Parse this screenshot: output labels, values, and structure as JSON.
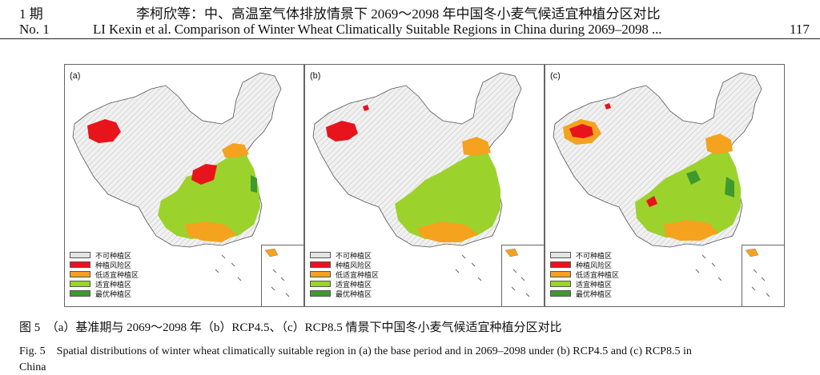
{
  "header": {
    "issue_cn": "1 期",
    "title_cn": "李柯欣等：中、高温室气体排放情景下 2069～2098 年中国冬小麦气候适宜种植分区对比",
    "issue_en": "No. 1",
    "title_en": "LI Kexin et al. Comparison of Winter Wheat Climatically Suitable Regions in China during 2069–2098 ...",
    "page": "117"
  },
  "panels": [
    {
      "label": "(a)"
    },
    {
      "label": "(b)"
    },
    {
      "label": "(c)"
    }
  ],
  "legend": [
    {
      "label": "不可种植区",
      "color": "#e4e4e4"
    },
    {
      "label": "种植风险区",
      "color": "#e8141c"
    },
    {
      "label": "低适宜种植区",
      "color": "#f5a21f"
    },
    {
      "label": "适宜种植区",
      "color": "#9cd22c"
    },
    {
      "label": "最优种植区",
      "color": "#3e9a2e"
    }
  ],
  "caption": {
    "cn": "图 5　（a）基准期与 2069～2098 年（b）RCP4.5、（c）RCP8.5 情景下中国冬小麦气候适宜种植分区对比",
    "en_line1": "Fig. 5　Spatial distributions of winter wheat climatically suitable region in (a) the base period and in 2069–2098 under (b) RCP4.5 and (c) RCP8.5 in",
    "en_line2": "China"
  }
}
